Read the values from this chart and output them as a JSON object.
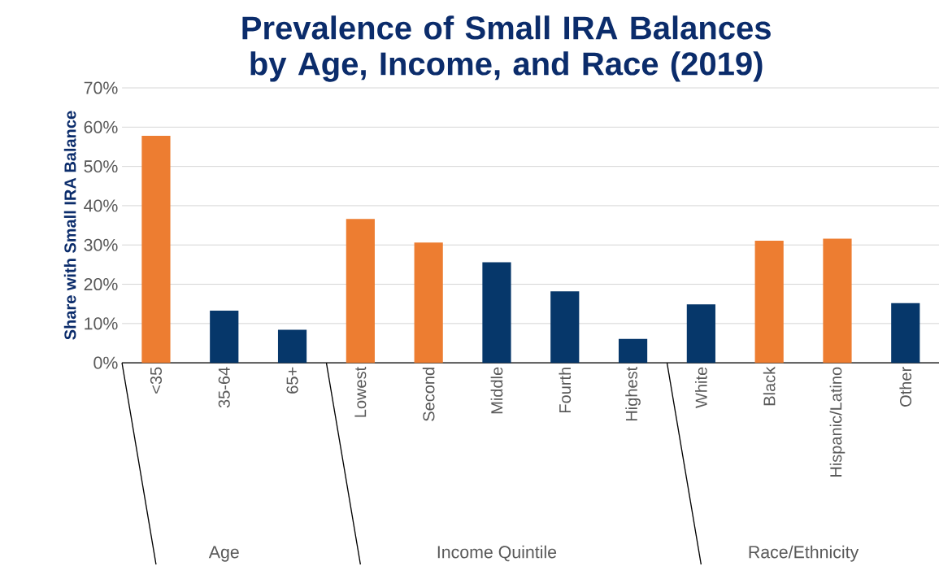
{
  "chart_data": {
    "type": "bar",
    "title": "Prevalence of Small IRA Balances by Age, Income, and Race (2019)",
    "ylabel": "Share with Small IRA Balance",
    "categories": [
      "<35",
      "35-64",
      "65+",
      "Lowest",
      "Second",
      "Middle",
      "Fourth",
      "Highest",
      "White",
      "Black",
      "Hispanic/Latino",
      "Other"
    ],
    "values": [
      57.8,
      13.3,
      8.4,
      36.6,
      30.6,
      25.6,
      18.2,
      6.1,
      14.9,
      31.1,
      31.6,
      15.2
    ],
    "colors": [
      "#ed7d31",
      "#06376a",
      "#06376a",
      "#ed7d31",
      "#ed7d31",
      "#06376a",
      "#06376a",
      "#06376a",
      "#06376a",
      "#ed7d31",
      "#ed7d31",
      "#06376a"
    ],
    "ylim": [
      0,
      70
    ],
    "yticks": [
      {
        "value": 0,
        "label": "0%"
      },
      {
        "value": 10,
        "label": "10%"
      },
      {
        "value": 20,
        "label": "20%"
      },
      {
        "value": 30,
        "label": "30%"
      },
      {
        "value": 40,
        "label": "40%"
      },
      {
        "value": 50,
        "label": "50%"
      },
      {
        "value": 60,
        "label": "60%"
      },
      {
        "value": 70,
        "label": "70%"
      }
    ],
    "grid": "y",
    "annotations": [
      "Age",
      "Income Quintile",
      "Race/Ethnicity"
    ]
  }
}
